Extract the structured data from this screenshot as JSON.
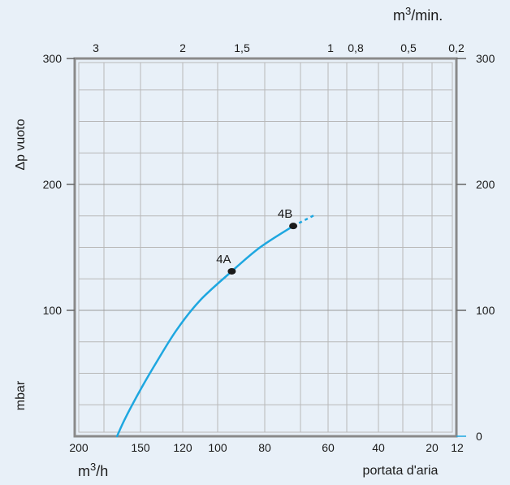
{
  "chart_data": {
    "type": "line",
    "ylabel": "Δp vuoto",
    "y_unit": "mbar",
    "xlabel": "portata d'aria",
    "x_unit": "m3/h",
    "top_unit": "m3/min.",
    "ylim": [
      0,
      300
    ],
    "left_ticks": [
      "300",
      "200",
      "100"
    ],
    "right_ticks": [
      "300",
      "200",
      "100",
      "0"
    ],
    "bottom_ticks": [
      "200",
      "150",
      "120",
      "100",
      "80",
      "60",
      "40",
      "20",
      "12"
    ],
    "top_ticks": [
      "3",
      "2",
      "1,5",
      "1",
      "0,8",
      "0,5",
      "0,2"
    ],
    "curve_color": "#1ea7e0",
    "grid": true,
    "series": [
      {
        "points": [
          {
            "x": 169,
            "y": 0
          },
          {
            "x": 162,
            "y": 15
          },
          {
            "x": 150,
            "y": 37
          },
          {
            "x": 138,
            "y": 60
          },
          {
            "x": 124,
            "y": 85
          },
          {
            "x": 110,
            "y": 108
          },
          {
            "x": 94,
            "y": 131
          },
          {
            "x": 82,
            "y": 150
          },
          {
            "x": 71,
            "y": 167
          }
        ],
        "extension": [
          {
            "x": 71,
            "y": 167
          },
          {
            "x": 64,
            "y": 176
          }
        ]
      }
    ],
    "annotations": [
      {
        "label": "4A",
        "x": 94,
        "y": 131
      },
      {
        "label": "4B",
        "x": 71,
        "y": 167
      }
    ]
  }
}
